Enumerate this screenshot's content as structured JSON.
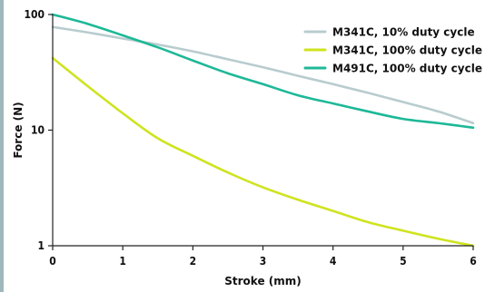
{
  "chart_data": {
    "type": "line",
    "xlabel": "Stroke (mm)",
    "ylabel": "Force (N)",
    "xlim": [
      0,
      6
    ],
    "ylim": [
      1,
      100
    ],
    "yscale": "log",
    "xticks": [
      "0",
      "1",
      "2",
      "3",
      "4",
      "5",
      "6"
    ],
    "yticks": [
      "1",
      "10",
      "100"
    ],
    "grid": false,
    "legend_position": "top-right",
    "series": [
      {
        "name": "M341C, 10% duty cycle",
        "color": "#b8cccf",
        "x": [
          0,
          0.5,
          1,
          1.5,
          2,
          2.5,
          3,
          3.5,
          4,
          4.5,
          5,
          5.5,
          6
        ],
        "y": [
          78,
          70,
          62,
          55,
          48,
          41,
          35,
          29.5,
          25,
          21,
          17.5,
          14.5,
          11.5
        ]
      },
      {
        "name": "M341C, 100% duty cycle",
        "color": "#cfe31f",
        "x": [
          0,
          0.5,
          1,
          1.5,
          2,
          2.5,
          3,
          3.5,
          4,
          4.5,
          5,
          5.5,
          6
        ],
        "y": [
          42,
          24,
          14,
          8.5,
          6,
          4.3,
          3.2,
          2.5,
          2.0,
          1.6,
          1.35,
          1.15,
          1.0
        ]
      },
      {
        "name": "M491C, 100% duty cycle",
        "color": "#1db897",
        "x": [
          0,
          0.5,
          1,
          1.5,
          2,
          2.5,
          3,
          3.5,
          4,
          4.5,
          5,
          5.5,
          6
        ],
        "y": [
          100,
          83,
          66,
          52,
          40,
          31,
          25,
          20,
          17,
          14.5,
          12.5,
          11.5,
          10.5
        ]
      }
    ]
  }
}
